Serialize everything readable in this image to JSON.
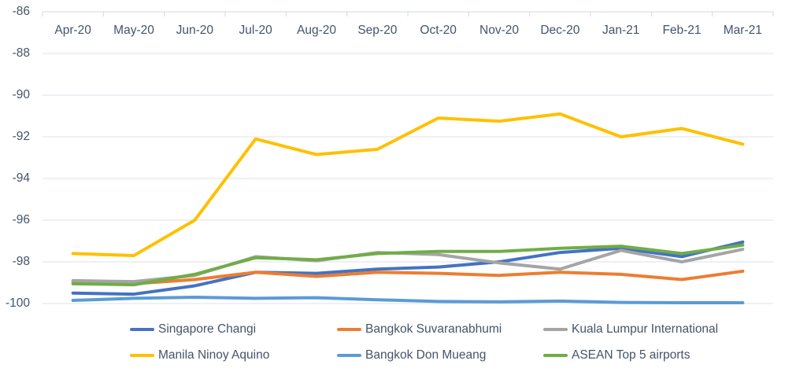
{
  "chart_data": {
    "type": "line",
    "title": "",
    "xlabel": "",
    "ylabel": "",
    "categories": [
      "Apr-20",
      "May-20",
      "Jun-20",
      "Jul-20",
      "Aug-20",
      "Sep-20",
      "Oct-20",
      "Nov-20",
      "Dec-20",
      "Jan-21",
      "Feb-21",
      "Mar-21"
    ],
    "series": [
      {
        "name": "Singapore Changi",
        "color": "#4472C4",
        "values": [
          -99.5,
          -99.55,
          -99.15,
          -98.5,
          -98.55,
          -98.35,
          -98.25,
          -98.0,
          -97.55,
          -97.35,
          -97.75,
          -97.05
        ]
      },
      {
        "name": "Bangkok Suvaranabhumi",
        "color": "#ED7D31",
        "values": [
          -99.0,
          -99.05,
          -98.85,
          -98.5,
          -98.7,
          -98.5,
          -98.55,
          -98.65,
          -98.5,
          -98.6,
          -98.85,
          -98.45
        ]
      },
      {
        "name": "Kuala Lumpur International",
        "color": "#A5A5A5",
        "values": [
          -98.9,
          -98.95,
          -98.65,
          -97.75,
          -97.95,
          -97.55,
          -97.65,
          -98.05,
          -98.35,
          -97.45,
          -98.0,
          -97.4
        ]
      },
      {
        "name": "Manila Ninoy Aquino",
        "color": "#FFC000",
        "values": [
          -97.6,
          -97.7,
          -96.0,
          -92.1,
          -92.85,
          -92.6,
          -91.1,
          -91.25,
          -90.9,
          -92.0,
          -91.6,
          -92.35
        ]
      },
      {
        "name": "Bangkok Don Mueang",
        "color": "#5B9BD5",
        "values": [
          -99.85,
          -99.75,
          -99.7,
          -99.75,
          -99.72,
          -99.82,
          -99.9,
          -99.92,
          -99.88,
          -99.95,
          -99.96,
          -99.96
        ]
      },
      {
        "name": "ASEAN Top 5 airports",
        "color": "#70AD47",
        "values": [
          -99.05,
          -99.1,
          -98.6,
          -97.8,
          -97.9,
          -97.6,
          -97.5,
          -97.5,
          -97.35,
          -97.25,
          -97.6,
          -97.2
        ]
      }
    ],
    "yticks": [
      -86,
      -88,
      -90,
      -92,
      -94,
      -96,
      -98,
      -100
    ],
    "ylim": [
      -100,
      -86
    ],
    "grid": true,
    "legend_position": "bottom",
    "legend_rows": [
      [
        0,
        1,
        2
      ],
      [
        3,
        4,
        5
      ]
    ],
    "colors": {
      "axis_text": "#44546A",
      "gridline": "#DCE1EA",
      "axis_line": "#D2D8E2"
    }
  }
}
